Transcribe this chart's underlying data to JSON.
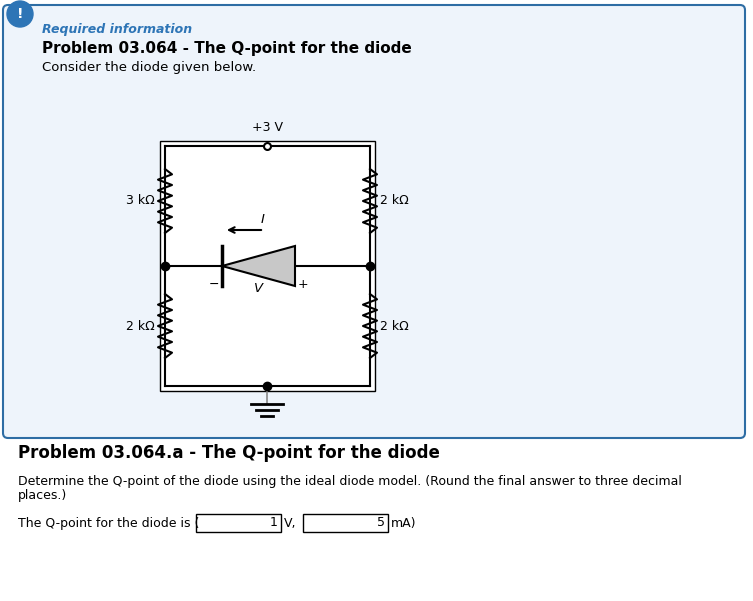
{
  "page_bg": "#ffffff",
  "border_color": "#2e6da4",
  "box_fill": "#eef4fb",
  "alert_bg": "#2e75b6",
  "alert_text": "!",
  "req_info_text": "Required information",
  "req_info_color": "#2e75b6",
  "title1": "Problem 03.064 - The Q-point for the diode",
  "subtitle1": "Consider the diode given below.",
  "title2": "Problem 03.064.a - The Q-point for the diode",
  "desc_line1": "Determine the Q-point of the diode using the ideal diode model. (Round the final answer to three decimal",
  "desc_line2": "places.)",
  "answer_prefix": "The Q-point for the diode is (",
  "answer_v_val": "1",
  "answer_v_unit": "V,",
  "answer_i_val": "5",
  "answer_i_unit": "mA)",
  "r1_label": "3 kΩ",
  "r2_label": "2 kΩ",
  "r3_label": "2 kΩ",
  "r4_label": "2 kΩ",
  "v_label": "+3 V",
  "current_label": "I",
  "v_diode_label": "V",
  "v_minus": "−",
  "v_plus": "+"
}
